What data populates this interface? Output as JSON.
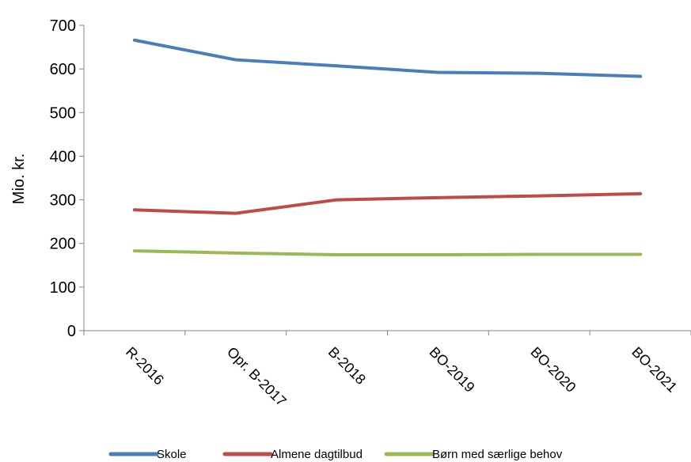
{
  "chart_data": {
    "type": "line",
    "categories": [
      "R-2016",
      "Opr. B-2017",
      "B-2018",
      "BO-2019",
      "BO-2020",
      "BO-2021"
    ],
    "series": [
      {
        "name": "Skole",
        "color": "#4a7ebb",
        "values": [
          666,
          621,
          607,
          592,
          590,
          583
        ]
      },
      {
        "name": "Almene dagtilbud",
        "color": "#be4b48",
        "values": [
          277,
          269,
          300,
          305,
          309,
          314
        ]
      },
      {
        "name": "Børn med særlige behov",
        "color": "#98b954",
        "values": [
          183,
          178,
          174,
          174,
          175,
          175
        ]
      }
    ],
    "ylabel": "Mio. kr.",
    "ylim": [
      0,
      700
    ],
    "yticks": [
      0,
      100,
      200,
      300,
      400,
      500,
      600,
      700
    ],
    "grid": false,
    "legend_position": "bottom"
  }
}
